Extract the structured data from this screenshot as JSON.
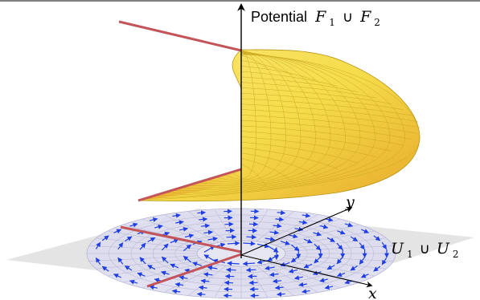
{
  "labels": {
    "potential_word": "Potential",
    "potential_math": "F",
    "potential_sub1": "1",
    "cup": "∪",
    "potential_sub2": "2",
    "y_axis": "y",
    "x_axis": "x",
    "domain_math": "U",
    "domain_sub1": "1",
    "domain_sub2": "2"
  },
  "colors": {
    "surface_fill": "#f5dc4a",
    "surface_grid": "#c9a418",
    "surface_shade": "#e8b02a",
    "cut_line": "#c2545a",
    "field_arrows": "#1f3fe6",
    "plane": "#e3e3e3",
    "disk": "#d8d8ef"
  },
  "icons": [
    "axis-arrow-icon"
  ]
}
